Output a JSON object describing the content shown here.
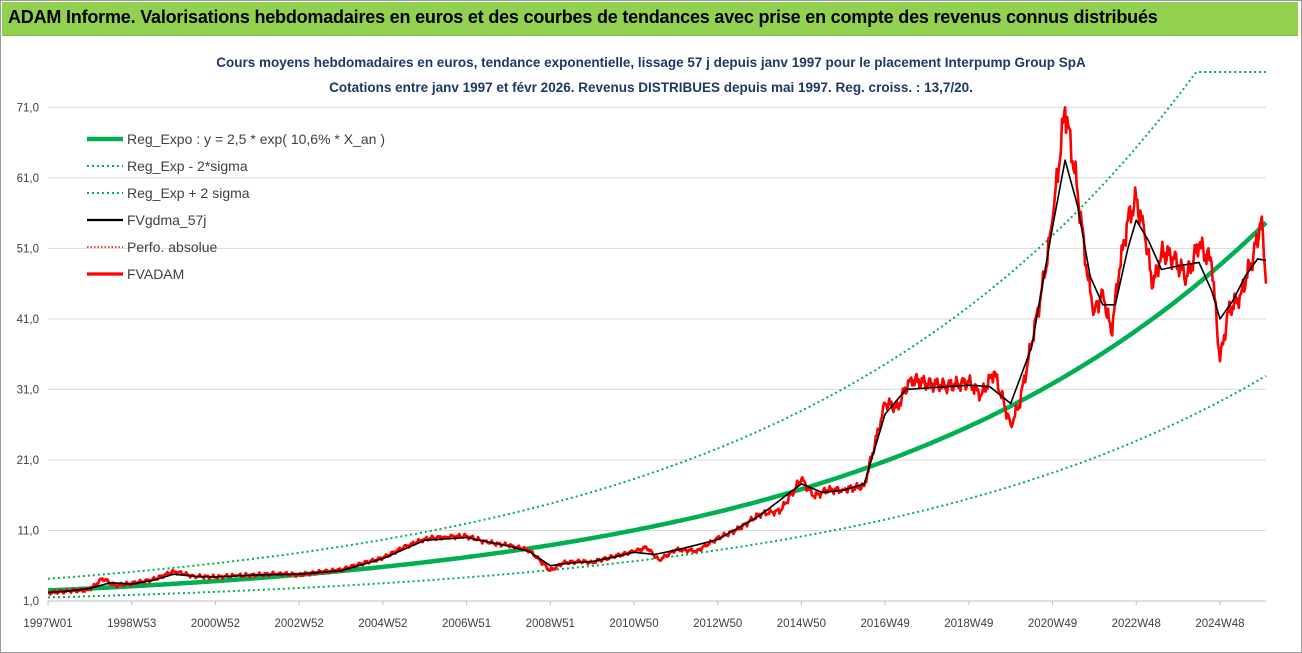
{
  "banner": {
    "title": "ADAM Informe. Valorisations hebdomadaires en euros et des courbes de tendances avec prise en compte des revenus connus distribués"
  },
  "colors": {
    "banner_bg": "#92d050",
    "trend_green": "#00b050",
    "band_green": "#00b050",
    "smoothed_black": "#000000",
    "price_red": "#ff0000",
    "title_navy": "#1f3864"
  },
  "chart_data": {
    "type": "line",
    "title": "Cours moyens hebdomadaires en euros, tendance exponentielle, lissage 57 j depuis janv 1997 pour le placement Interpump Group SpA",
    "subtitle": "Cotations entre janv 1997 et févr 2026. Revenus DISTRIBUES depuis mai 1997. Reg. croiss. : 13,7/20.",
    "xlabel": "",
    "ylabel": "",
    "xlim": [
      1997.0,
      2026.1
    ],
    "ylim": [
      1.0,
      76.0
    ],
    "yticks": [
      "1,0",
      "11,0",
      "21,0",
      "31,0",
      "41,0",
      "51,0",
      "61,0",
      "71,0"
    ],
    "yticks_values": [
      1,
      11,
      21,
      31,
      41,
      51,
      61,
      71
    ],
    "xticks": [
      "1997W01",
      "1998W53",
      "2000W52",
      "2002W52",
      "2004W52",
      "2006W51",
      "2008W51",
      "2010W50",
      "2012W50",
      "2014W50",
      "2016W49",
      "2018W49",
      "2020W49",
      "2022W48",
      "2024W48"
    ],
    "xticks_values": [
      1997.0,
      1999.0,
      2001.0,
      2003.0,
      2005.0,
      2007.0,
      2009.0,
      2011.0,
      2013.0,
      2015.0,
      2017.0,
      2019.0,
      2021.0,
      2023.0,
      2025.0
    ],
    "grid": {
      "horizontal": true,
      "vertical": false
    },
    "legend_position": "top-left",
    "legend": [
      {
        "label": "Reg_Expo : y = 2,5 * exp( 10,6% *  X_an )",
        "series": "reg_expo"
      },
      {
        "label": "Reg_Exp - 2*sigma",
        "series": "reg_minus"
      },
      {
        "label": "Reg_Exp + 2 sigma",
        "series": "reg_plus"
      },
      {
        "label": "FVgdma_57j",
        "series": "fvgdma"
      },
      {
        "label": "Perfo. absolue",
        "series": "perfo"
      },
      {
        "label": "FVADAM",
        "series": "fvadam"
      }
    ],
    "trend": {
      "a": 2.5,
      "b": 0.106,
      "t0": 1997.0,
      "sigma_factor": 1.66,
      "cap": 76.0
    },
    "series": [
      {
        "name": "FVADAM",
        "key": "fvadam",
        "x": [
          1997.0,
          1997.5,
          1998.0,
          1998.3,
          1998.6,
          1999.0,
          1999.5,
          2000.0,
          2000.5,
          2001.0,
          2001.5,
          2002.0,
          2002.5,
          2003.0,
          2003.5,
          2004.0,
          2004.5,
          2005.0,
          2005.5,
          2006.0,
          2006.5,
          2007.0,
          2007.5,
          2008.0,
          2008.5,
          2009.0,
          2009.3,
          2009.7,
          2010.0,
          2010.5,
          2011.0,
          2011.3,
          2011.6,
          2012.0,
          2012.5,
          2013.0,
          2013.5,
          2014.0,
          2014.5,
          2015.0,
          2015.3,
          2015.6,
          2016.0,
          2016.5,
          2017.0,
          2017.3,
          2017.6,
          2018.0,
          2018.5,
          2019.0,
          2019.3,
          2019.6,
          2020.0,
          2020.2,
          2020.5,
          2020.8,
          2021.0,
          2021.3,
          2021.6,
          2021.85,
          2022.0,
          2022.2,
          2022.4,
          2022.6,
          2022.8,
          2023.0,
          2023.2,
          2023.4,
          2023.6,
          2023.9,
          2024.2,
          2024.5,
          2024.8,
          2025.0,
          2025.2,
          2025.5,
          2025.8,
          2026.0,
          2026.1
        ],
        "y": [
          2.2,
          2.4,
          2.6,
          4.2,
          3.2,
          3.5,
          4.0,
          5.2,
          4.5,
          4.4,
          4.6,
          4.7,
          4.9,
          4.7,
          5.1,
          5.4,
          6.3,
          7.1,
          8.6,
          9.8,
          10.1,
          10.2,
          9.3,
          8.9,
          8.2,
          5.3,
          6.4,
          6.6,
          6.5,
          7.3,
          8.0,
          8.6,
          6.8,
          8.3,
          8.1,
          9.9,
          11.2,
          13.3,
          13.8,
          18.3,
          15.8,
          16.7,
          16.8,
          17.3,
          29.0,
          28.5,
          32.5,
          31.8,
          31.5,
          32.0,
          30.2,
          33.5,
          26.0,
          28.7,
          37.5,
          46.8,
          55.0,
          71.0,
          59.0,
          46.5,
          42.0,
          45.0,
          39.0,
          48.0,
          55.0,
          58.0,
          53.0,
          45.5,
          50.5,
          49.5,
          47.0,
          51.5,
          49.0,
          35.0,
          42.0,
          44.5,
          50.0,
          55.5,
          46.0
        ]
      },
      {
        "name": "FVgdma_57j",
        "key": "fvgdma",
        "x": [
          1997.0,
          1997.5,
          1998.0,
          1998.5,
          1999.0,
          1999.5,
          2000.0,
          2000.5,
          2001.0,
          2002.0,
          2003.0,
          2004.0,
          2005.0,
          2006.0,
          2007.0,
          2007.5,
          2008.0,
          2008.5,
          2009.0,
          2009.5,
          2010.0,
          2010.5,
          2011.0,
          2011.5,
          2012.0,
          2013.0,
          2014.0,
          2015.0,
          2015.5,
          2016.0,
          2016.5,
          2017.0,
          2017.5,
          2018.0,
          2019.0,
          2019.5,
          2020.0,
          2020.5,
          2021.0,
          2021.3,
          2021.6,
          2021.9,
          2022.2,
          2022.5,
          2022.8,
          2023.0,
          2023.3,
          2023.6,
          2024.0,
          2024.5,
          2024.8,
          2025.0,
          2025.3,
          2025.6,
          2025.9,
          2026.1
        ],
        "y": [
          2.2,
          2.4,
          2.8,
          3.6,
          3.4,
          3.9,
          4.8,
          4.5,
          4.4,
          4.7,
          4.8,
          5.3,
          7.0,
          9.6,
          10.0,
          9.4,
          8.8,
          8.0,
          6.0,
          6.4,
          6.6,
          7.2,
          7.9,
          7.6,
          8.2,
          9.7,
          13.1,
          17.6,
          16.4,
          16.7,
          17.6,
          27.5,
          31.0,
          31.2,
          31.6,
          31.4,
          29.0,
          37.0,
          54.0,
          63.5,
          57.0,
          47.0,
          43.0,
          43.0,
          51.0,
          55.0,
          52.0,
          48.0,
          48.5,
          49.0,
          45.0,
          41.0,
          43.5,
          47.0,
          49.5,
          49.3
        ]
      }
    ]
  }
}
